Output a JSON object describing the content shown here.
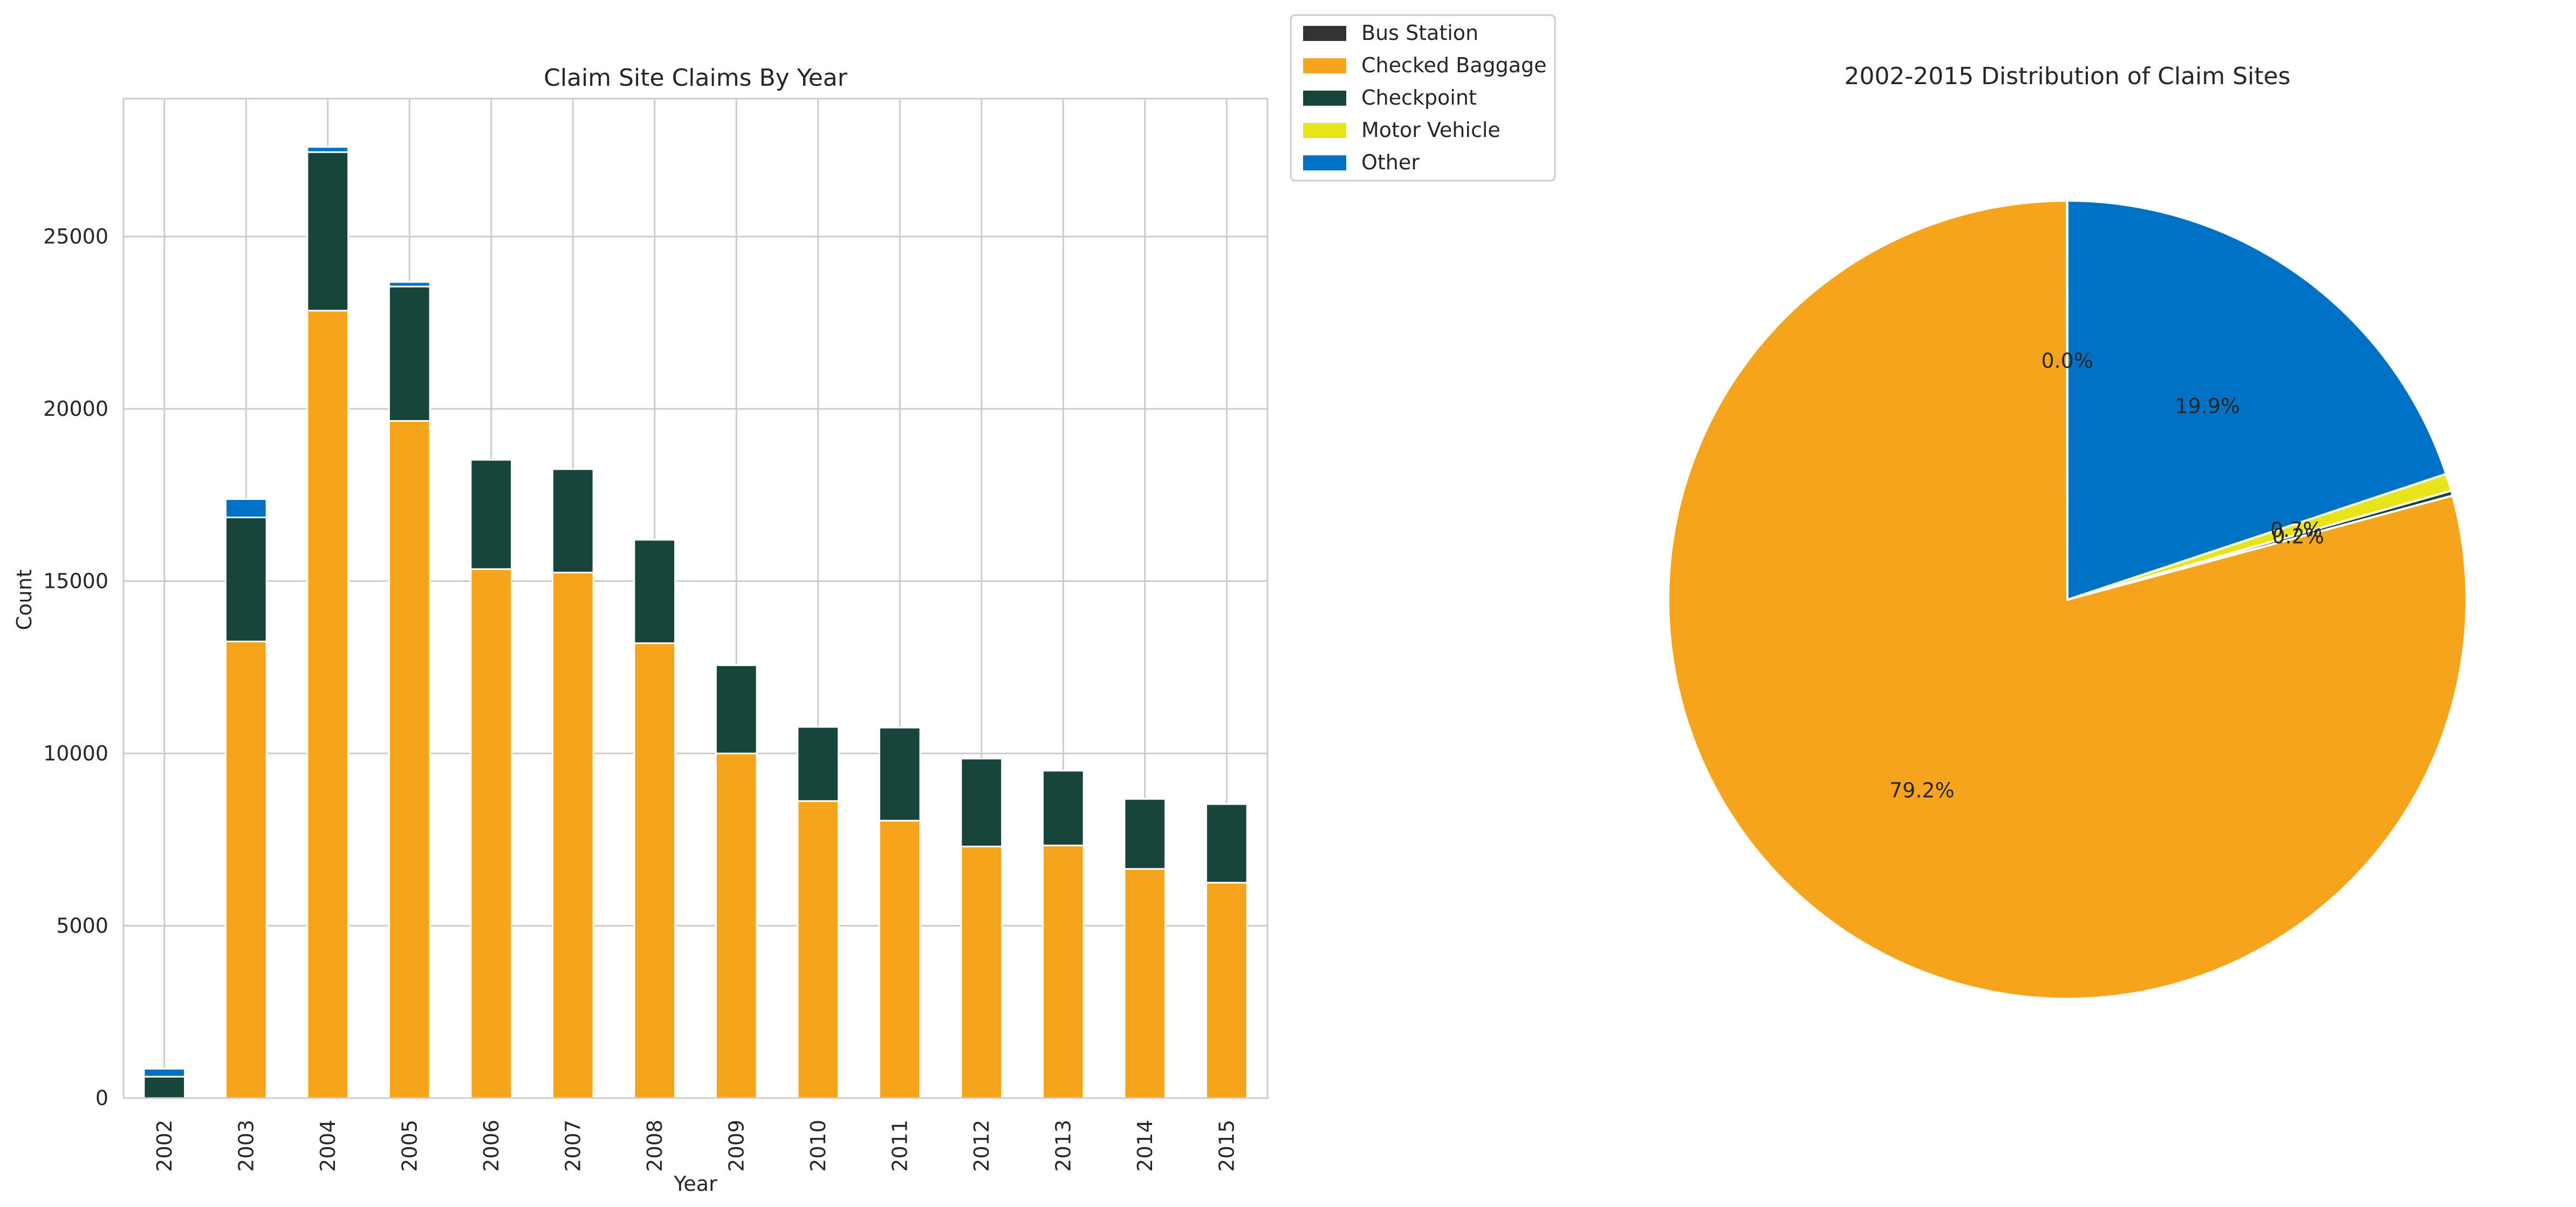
{
  "colors": {
    "Bus Station": "#333333",
    "Checked Baggage": "#F7A41D",
    "Checkpoint": "#18453B",
    "Motor Vehicle": "#E8E41A",
    "Other": "#0072C6",
    "grid": "#cccccc",
    "text": "#262626"
  },
  "chart_data": [
    {
      "type": "bar",
      "stacked": true,
      "title": "Claim Site Claims By Year",
      "xlabel": "Year",
      "ylabel": "Count",
      "ylim": [
        0,
        29000
      ],
      "yticks": [
        0,
        5000,
        10000,
        15000,
        20000,
        25000
      ],
      "grid": true,
      "categories": [
        "2002",
        "2003",
        "2004",
        "2005",
        "2006",
        "2007",
        "2008",
        "2009",
        "2010",
        "2011",
        "2012",
        "2013",
        "2014",
        "2015"
      ],
      "series": [
        {
          "name": "Bus Station",
          "values": [
            0,
            0,
            0,
            0,
            0,
            0,
            0,
            0,
            0,
            0,
            0,
            0,
            0,
            0
          ]
        },
        {
          "name": "Checked Baggage",
          "values": [
            0,
            13250,
            22850,
            19650,
            15350,
            15250,
            13200,
            10000,
            8620,
            8050,
            7300,
            7330,
            6650,
            6250
          ]
        },
        {
          "name": "Checkpoint",
          "values": [
            620,
            3600,
            4600,
            3900,
            3170,
            3000,
            3000,
            2560,
            2150,
            2700,
            2550,
            2170,
            2030,
            2280
          ]
        },
        {
          "name": "Motor Vehicle",
          "values": [
            0,
            0,
            0,
            0,
            0,
            0,
            0,
            0,
            0,
            0,
            0,
            0,
            0,
            0
          ]
        },
        {
          "name": "Other",
          "values": [
            230,
            530,
            150,
            130,
            0,
            0,
            0,
            0,
            0,
            0,
            0,
            0,
            0,
            0
          ]
        }
      ],
      "legend": {
        "placement": "outside-top-right",
        "entries": [
          "Bus Station",
          "Checked Baggage",
          "Checkpoint",
          "Motor Vehicle",
          "Other"
        ]
      }
    },
    {
      "type": "pie",
      "title": "2002-2015 Distribution of Claim Sites",
      "start_angle": 90,
      "direction": "counterclockwise",
      "slices": [
        {
          "name": "Bus Station",
          "value": 0.02,
          "label": "0.0%"
        },
        {
          "name": "Checked Baggage",
          "value": 79.2,
          "label": "79.2%"
        },
        {
          "name": "Checkpoint",
          "value": 0.2,
          "label": "0.2%"
        },
        {
          "name": "Motor Vehicle",
          "value": 0.7,
          "label": "0.7%"
        },
        {
          "name": "Other",
          "value": 19.9,
          "label": "19.9%"
        }
      ]
    }
  ]
}
